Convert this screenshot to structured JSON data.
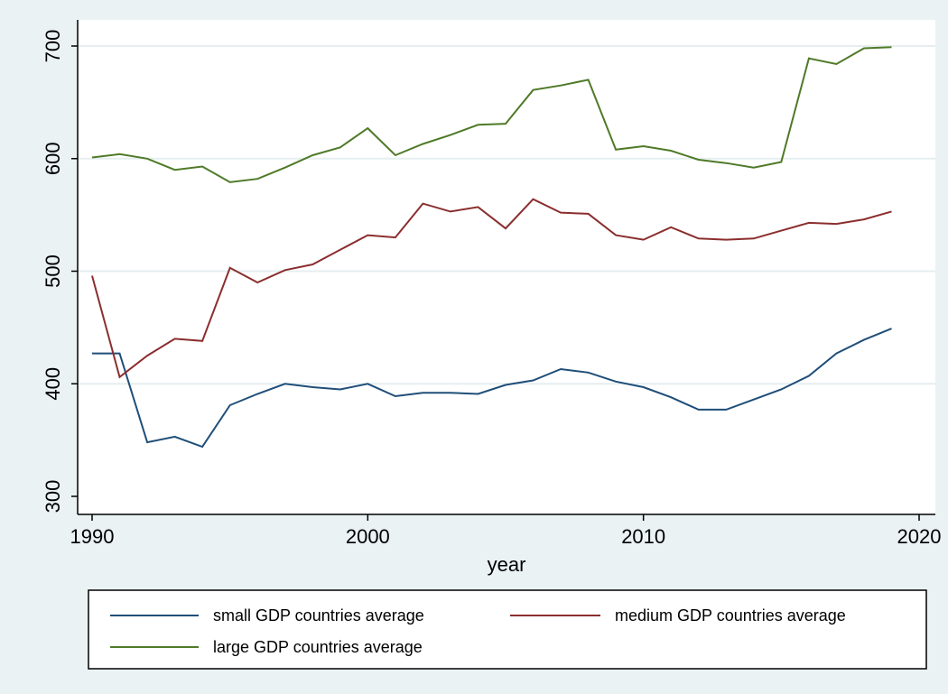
{
  "chart_data": {
    "type": "line",
    "title": "",
    "xlabel": "year",
    "ylabel": "",
    "xlim": [
      1990,
      2020
    ],
    "ylim": [
      300,
      700
    ],
    "xticks": [
      1990,
      2000,
      2010,
      2020
    ],
    "yticks": [
      300,
      400,
      500,
      600,
      700
    ],
    "xtick_labels": [
      "1990",
      "2000",
      "2010",
      "2020"
    ],
    "ytick_labels": [
      "300",
      "400",
      "500",
      "600",
      "700"
    ],
    "grid": "horizontal",
    "legend_position": "bottom",
    "x": [
      1990,
      1991,
      1992,
      1993,
      1994,
      1995,
      1996,
      1997,
      1998,
      1999,
      2000,
      2001,
      2002,
      2003,
      2004,
      2005,
      2006,
      2007,
      2008,
      2009,
      2010,
      2011,
      2012,
      2013,
      2014,
      2015,
      2016,
      2017,
      2018,
      2019
    ],
    "series": [
      {
        "name": "small GDP countries average",
        "color": "#1f4e79",
        "values": [
          427,
          427,
          348,
          353,
          344,
          381,
          391,
          400,
          397,
          395,
          400,
          389,
          392,
          392,
          391,
          399,
          403,
          413,
          410,
          402,
          397,
          388,
          377,
          377,
          386,
          395,
          407,
          427,
          439,
          449
        ]
      },
      {
        "name": "medium GDP countries average",
        "color": "#8b2e2e",
        "values": [
          496,
          406,
          425,
          440,
          438,
          503,
          490,
          501,
          506,
          519,
          532,
          530,
          560,
          553,
          557,
          538,
          564,
          552,
          551,
          532,
          528,
          539,
          529,
          528,
          529,
          536,
          543,
          542,
          546,
          553
        ]
      },
      {
        "name": "large GDP countries average",
        "color": "#4f7a28",
        "values": [
          601,
          604,
          600,
          590,
          593,
          579,
          582,
          592,
          603,
          610,
          627,
          603,
          613,
          621,
          630,
          631,
          661,
          665,
          670,
          608,
          611,
          607,
          599,
          596,
          592,
          597,
          689,
          684,
          698,
          699
        ]
      }
    ]
  }
}
